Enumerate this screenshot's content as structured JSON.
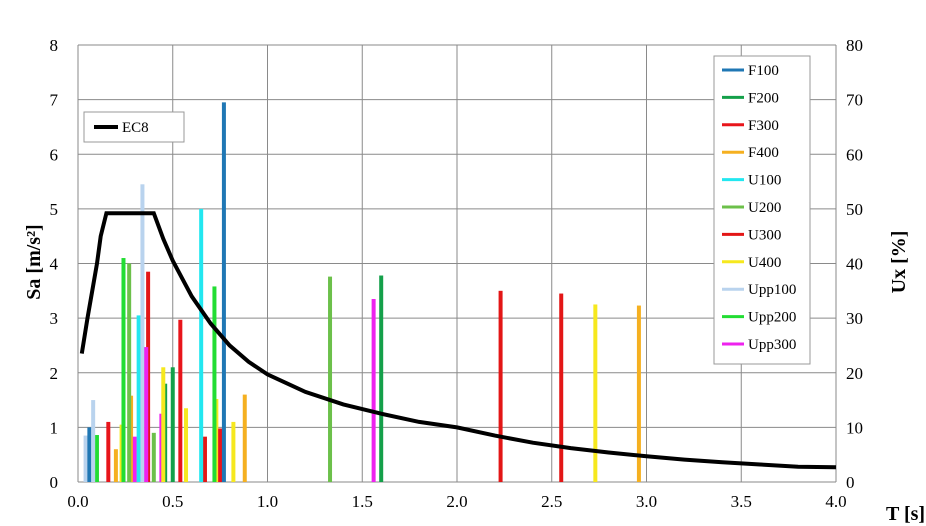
{
  "chart_data": {
    "type": "bar",
    "title": "",
    "xlabel": "T [s]",
    "ylabel": "Sa [m/s²]",
    "y2label": "Ux [%]",
    "xlim": [
      0.0,
      4.0
    ],
    "ylim": [
      0,
      8
    ],
    "y2lim": [
      0,
      80
    ],
    "x_ticks": [
      "0.0",
      "0.5",
      "1.0",
      "1.5",
      "2.0",
      "2.5",
      "3.0",
      "3.5",
      "4.0"
    ],
    "y_ticks": [
      "0",
      "1",
      "2",
      "3",
      "4",
      "5",
      "6",
      "7",
      "8"
    ],
    "y2_ticks": [
      "0",
      "10",
      "20",
      "30",
      "40",
      "50",
      "60",
      "70",
      "80"
    ],
    "grid": true,
    "legend_position": "right",
    "ec8_legend_position": "top-left",
    "spectrum": {
      "name": "EC8",
      "color": "#000000",
      "x": [
        0.02,
        0.05,
        0.08,
        0.1,
        0.12,
        0.15,
        0.2,
        0.3,
        0.4,
        0.45,
        0.5,
        0.6,
        0.7,
        0.8,
        0.9,
        1.0,
        1.2,
        1.4,
        1.6,
        1.8,
        2.0,
        2.2,
        2.4,
        2.6,
        2.8,
        3.0,
        3.2,
        3.4,
        3.6,
        3.8,
        4.0
      ],
      "y": [
        2.35,
        3.0,
        3.6,
        4.0,
        4.5,
        4.92,
        4.92,
        4.92,
        4.92,
        4.45,
        4.05,
        3.4,
        2.9,
        2.5,
        2.2,
        1.97,
        1.65,
        1.42,
        1.25,
        1.1,
        1.0,
        0.85,
        0.72,
        0.62,
        0.54,
        0.47,
        0.41,
        0.36,
        0.32,
        0.28,
        0.27
      ]
    },
    "series": [
      {
        "name": "F100",
        "color": "#1f77b4",
        "x": [
          0.06,
          0.77
        ],
        "ux": [
          10,
          69.5
        ]
      },
      {
        "name": "F200",
        "color": "#14a04a",
        "x": [
          0.5,
          1.6
        ],
        "ux": [
          21,
          37.8
        ]
      },
      {
        "name": "F300",
        "color": "#e8151b",
        "x": [
          0.16,
          0.54
        ],
        "ux": [
          11,
          29.7
        ]
      },
      {
        "name": "F400",
        "color": "#f5b020",
        "x": [
          0.2,
          0.88
        ],
        "ux": [
          6,
          16
        ]
      },
      {
        "name": "U100",
        "color": "#22e7f0",
        "x": [
          0.32,
          0.65
        ],
        "ux": [
          30.5,
          50
        ]
      },
      {
        "name": "U200",
        "color": "#6cc04a",
        "x": [
          0.27,
          1.33
        ],
        "ux": [
          40,
          37.6
        ]
      },
      {
        "name": "U300",
        "color": "#e31616",
        "x": [
          0.37,
          2.23
        ],
        "ux": [
          38.5,
          35
        ]
      },
      {
        "name": "U400",
        "color": "#f6e81e",
        "x": [
          0.45,
          2.73
        ],
        "ux": [
          21,
          32.5
        ]
      },
      {
        "name": "Upp100",
        "color": "#b9d3ee",
        "x": [
          0.34,
          0.08
        ],
        "ux": [
          54.5,
          15
        ]
      },
      {
        "name": "Upp200",
        "color": "#22dd33",
        "x": [
          0.24,
          0.72
        ],
        "ux": [
          41,
          35.8
        ]
      },
      {
        "name": "Upp300",
        "color": "#ee22ee",
        "x": [
          0.36,
          1.56
        ],
        "ux": [
          24.7,
          33.5
        ]
      }
    ],
    "minor_bars": [
      {
        "x": 0.04,
        "ux": 8.5,
        "color": "#b9d3ee"
      },
      {
        "x": 0.09,
        "ux": 8.2,
        "color": "#14a04a"
      },
      {
        "x": 0.1,
        "ux": 8.6,
        "color": "#22dd33"
      },
      {
        "x": 0.23,
        "ux": 10.5,
        "color": "#f6e81e"
      },
      {
        "x": 0.28,
        "ux": 15.8,
        "color": "#f5b020"
      },
      {
        "x": 0.3,
        "ux": 8.3,
        "color": "#ee22ee"
      },
      {
        "x": 0.4,
        "ux": 9,
        "color": "#6cc04a"
      },
      {
        "x": 0.44,
        "ux": 12.5,
        "color": "#ee22ee"
      },
      {
        "x": 0.46,
        "ux": 18,
        "color": "#14a04a"
      },
      {
        "x": 0.57,
        "ux": 13.5,
        "color": "#f6e81e"
      },
      {
        "x": 0.67,
        "ux": 8.3,
        "color": "#e31616"
      },
      {
        "x": 0.73,
        "ux": 15.2,
        "color": "#f6e81e"
      },
      {
        "x": 0.75,
        "ux": 9.8,
        "color": "#e8151b"
      },
      {
        "x": 0.82,
        "ux": 11,
        "color": "#f6e81e"
      },
      {
        "x": 2.96,
        "ux": 32.3,
        "color": "#f5b020"
      },
      {
        "x": 2.55,
        "ux": 34.5,
        "color": "#e31616"
      }
    ]
  }
}
